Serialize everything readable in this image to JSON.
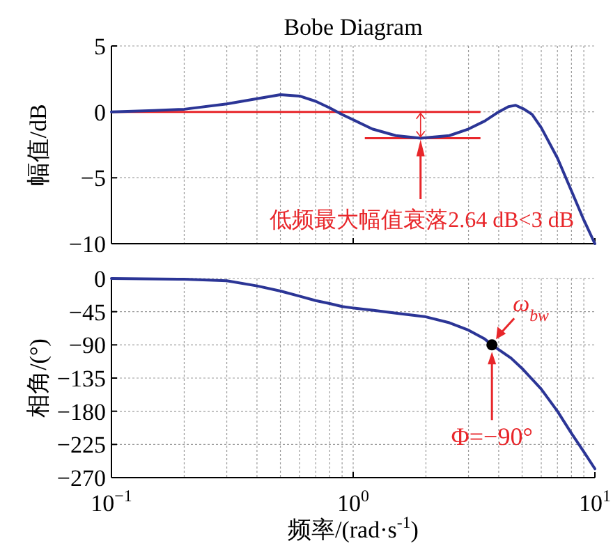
{
  "chart_data": [
    {
      "type": "line",
      "title": "Bobe Diagram",
      "ylabel": "幅值/dB",
      "log": "x",
      "grid": true,
      "tick_labels": "y",
      "xlim": [
        0.1,
        10
      ],
      "xticks": [
        {
          "value": 0.1,
          "label": null
        },
        {
          "value": 1,
          "label": null
        },
        {
          "value": 10,
          "label": null
        }
      ],
      "ylim": [
        -10,
        5
      ],
      "yticks": [
        -10,
        -5,
        0,
        5
      ],
      "series": [
        {
          "color": "#2b3596",
          "x": [
            0.1,
            0.15,
            0.2,
            0.3,
            0.4,
            0.5,
            0.6,
            0.7,
            0.8,
            0.9,
            1.0,
            1.2,
            1.5,
            1.9,
            2.5,
            3.0,
            3.5,
            4.0,
            4.4,
            4.7,
            5.1,
            5.5,
            6.0,
            7.0,
            8.0,
            9.0,
            10.0
          ],
          "values": [
            0,
            0.1,
            0.2,
            0.6,
            1.0,
            1.3,
            1.2,
            0.8,
            0.3,
            -0.2,
            -0.6,
            -1.3,
            -1.8,
            -2.0,
            -1.8,
            -1.3,
            -0.7,
            0,
            0.4,
            0.5,
            0.2,
            -0.2,
            -1.2,
            -3.5,
            -6.0,
            -8.2,
            -10.0
          ]
        }
      ],
      "ref_lines": [
        {
          "axis": "y",
          "value": 0,
          "color": "#e8262a"
        },
        {
          "axis": "y",
          "value": -2,
          "color": "#e8262a"
        }
      ],
      "annotations": [
        "低频最大幅值衰落2.64 dB<3 dB"
      ]
    },
    {
      "type": "line",
      "xlabel": "频率/(rad·s$^{-1}$)",
      "ylabel": "相角/(°)",
      "log": "x",
      "grid": true,
      "xlim": [
        0.1,
        10
      ],
      "xticks": [
        {
          "value": 0.1,
          "label": "10$^{−1}$"
        },
        {
          "value": 1,
          "label": "10$^{0}$"
        },
        {
          "value": 10,
          "label": "10$^{1}$"
        }
      ],
      "ylim": [
        -270,
        0
      ],
      "yticks": [
        -270,
        -225,
        -180,
        -135,
        -90,
        -45,
        0
      ],
      "series": [
        {
          "color": "#2b3596",
          "x": [
            0.1,
            0.2,
            0.3,
            0.4,
            0.5,
            0.6,
            0.7,
            0.8,
            0.9,
            1.0,
            1.2,
            1.5,
            2.0,
            2.5,
            3.0,
            3.5,
            3.75,
            4.5,
            5.0,
            6.0,
            7.0,
            8.0,
            9.0,
            10.0
          ],
          "values": [
            0,
            -1,
            -3,
            -10,
            -17,
            -24,
            -30,
            -34,
            -38,
            -40,
            -43,
            -47,
            -52,
            -60,
            -70,
            -82,
            -90,
            -108,
            -122,
            -150,
            -180,
            -210,
            -235,
            -258
          ]
        },
        {
          "type": "scatter",
          "marker": "circle",
          "color": "#000000",
          "x": [
            3.75
          ],
          "values": [
            -90
          ]
        }
      ],
      "annotations": [
        "ω$_{bw}$",
        "Φ=−90°"
      ]
    }
  ]
}
